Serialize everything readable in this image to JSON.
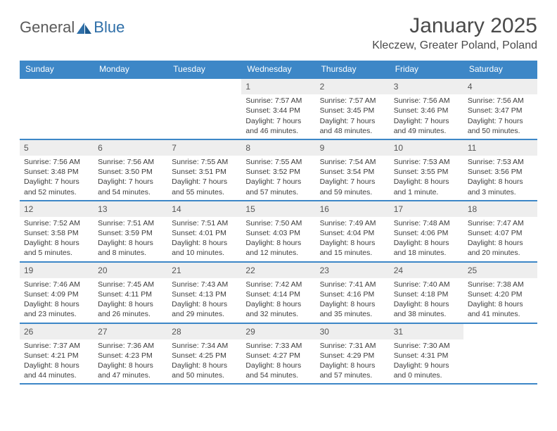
{
  "brand": {
    "part1": "General",
    "part2": "Blue"
  },
  "title": "January 2025",
  "location": "Kleczew, Greater Poland, Poland",
  "colors": {
    "header_bg": "#3d87c7",
    "header_text": "#ffffff",
    "daynum_bg": "#eeeeee",
    "border": "#3d87c7",
    "text": "#3c3c3c",
    "logo_gray": "#5a5a5a",
    "logo_blue": "#2f6fa8"
  },
  "weekdays": [
    "Sunday",
    "Monday",
    "Tuesday",
    "Wednesday",
    "Thursday",
    "Friday",
    "Saturday"
  ],
  "weeks": [
    [
      {
        "num": "",
        "lines": []
      },
      {
        "num": "",
        "lines": []
      },
      {
        "num": "",
        "lines": []
      },
      {
        "num": "1",
        "lines": [
          "Sunrise: 7:57 AM",
          "Sunset: 3:44 PM",
          "Daylight: 7 hours",
          "and 46 minutes."
        ]
      },
      {
        "num": "2",
        "lines": [
          "Sunrise: 7:57 AM",
          "Sunset: 3:45 PM",
          "Daylight: 7 hours",
          "and 48 minutes."
        ]
      },
      {
        "num": "3",
        "lines": [
          "Sunrise: 7:56 AM",
          "Sunset: 3:46 PM",
          "Daylight: 7 hours",
          "and 49 minutes."
        ]
      },
      {
        "num": "4",
        "lines": [
          "Sunrise: 7:56 AM",
          "Sunset: 3:47 PM",
          "Daylight: 7 hours",
          "and 50 minutes."
        ]
      }
    ],
    [
      {
        "num": "5",
        "lines": [
          "Sunrise: 7:56 AM",
          "Sunset: 3:48 PM",
          "Daylight: 7 hours",
          "and 52 minutes."
        ]
      },
      {
        "num": "6",
        "lines": [
          "Sunrise: 7:56 AM",
          "Sunset: 3:50 PM",
          "Daylight: 7 hours",
          "and 54 minutes."
        ]
      },
      {
        "num": "7",
        "lines": [
          "Sunrise: 7:55 AM",
          "Sunset: 3:51 PM",
          "Daylight: 7 hours",
          "and 55 minutes."
        ]
      },
      {
        "num": "8",
        "lines": [
          "Sunrise: 7:55 AM",
          "Sunset: 3:52 PM",
          "Daylight: 7 hours",
          "and 57 minutes."
        ]
      },
      {
        "num": "9",
        "lines": [
          "Sunrise: 7:54 AM",
          "Sunset: 3:54 PM",
          "Daylight: 7 hours",
          "and 59 minutes."
        ]
      },
      {
        "num": "10",
        "lines": [
          "Sunrise: 7:53 AM",
          "Sunset: 3:55 PM",
          "Daylight: 8 hours",
          "and 1 minute."
        ]
      },
      {
        "num": "11",
        "lines": [
          "Sunrise: 7:53 AM",
          "Sunset: 3:56 PM",
          "Daylight: 8 hours",
          "and 3 minutes."
        ]
      }
    ],
    [
      {
        "num": "12",
        "lines": [
          "Sunrise: 7:52 AM",
          "Sunset: 3:58 PM",
          "Daylight: 8 hours",
          "and 5 minutes."
        ]
      },
      {
        "num": "13",
        "lines": [
          "Sunrise: 7:51 AM",
          "Sunset: 3:59 PM",
          "Daylight: 8 hours",
          "and 8 minutes."
        ]
      },
      {
        "num": "14",
        "lines": [
          "Sunrise: 7:51 AM",
          "Sunset: 4:01 PM",
          "Daylight: 8 hours",
          "and 10 minutes."
        ]
      },
      {
        "num": "15",
        "lines": [
          "Sunrise: 7:50 AM",
          "Sunset: 4:03 PM",
          "Daylight: 8 hours",
          "and 12 minutes."
        ]
      },
      {
        "num": "16",
        "lines": [
          "Sunrise: 7:49 AM",
          "Sunset: 4:04 PM",
          "Daylight: 8 hours",
          "and 15 minutes."
        ]
      },
      {
        "num": "17",
        "lines": [
          "Sunrise: 7:48 AM",
          "Sunset: 4:06 PM",
          "Daylight: 8 hours",
          "and 18 minutes."
        ]
      },
      {
        "num": "18",
        "lines": [
          "Sunrise: 7:47 AM",
          "Sunset: 4:07 PM",
          "Daylight: 8 hours",
          "and 20 minutes."
        ]
      }
    ],
    [
      {
        "num": "19",
        "lines": [
          "Sunrise: 7:46 AM",
          "Sunset: 4:09 PM",
          "Daylight: 8 hours",
          "and 23 minutes."
        ]
      },
      {
        "num": "20",
        "lines": [
          "Sunrise: 7:45 AM",
          "Sunset: 4:11 PM",
          "Daylight: 8 hours",
          "and 26 minutes."
        ]
      },
      {
        "num": "21",
        "lines": [
          "Sunrise: 7:43 AM",
          "Sunset: 4:13 PM",
          "Daylight: 8 hours",
          "and 29 minutes."
        ]
      },
      {
        "num": "22",
        "lines": [
          "Sunrise: 7:42 AM",
          "Sunset: 4:14 PM",
          "Daylight: 8 hours",
          "and 32 minutes."
        ]
      },
      {
        "num": "23",
        "lines": [
          "Sunrise: 7:41 AM",
          "Sunset: 4:16 PM",
          "Daylight: 8 hours",
          "and 35 minutes."
        ]
      },
      {
        "num": "24",
        "lines": [
          "Sunrise: 7:40 AM",
          "Sunset: 4:18 PM",
          "Daylight: 8 hours",
          "and 38 minutes."
        ]
      },
      {
        "num": "25",
        "lines": [
          "Sunrise: 7:38 AM",
          "Sunset: 4:20 PM",
          "Daylight: 8 hours",
          "and 41 minutes."
        ]
      }
    ],
    [
      {
        "num": "26",
        "lines": [
          "Sunrise: 7:37 AM",
          "Sunset: 4:21 PM",
          "Daylight: 8 hours",
          "and 44 minutes."
        ]
      },
      {
        "num": "27",
        "lines": [
          "Sunrise: 7:36 AM",
          "Sunset: 4:23 PM",
          "Daylight: 8 hours",
          "and 47 minutes."
        ]
      },
      {
        "num": "28",
        "lines": [
          "Sunrise: 7:34 AM",
          "Sunset: 4:25 PM",
          "Daylight: 8 hours",
          "and 50 minutes."
        ]
      },
      {
        "num": "29",
        "lines": [
          "Sunrise: 7:33 AM",
          "Sunset: 4:27 PM",
          "Daylight: 8 hours",
          "and 54 minutes."
        ]
      },
      {
        "num": "30",
        "lines": [
          "Sunrise: 7:31 AM",
          "Sunset: 4:29 PM",
          "Daylight: 8 hours",
          "and 57 minutes."
        ]
      },
      {
        "num": "31",
        "lines": [
          "Sunrise: 7:30 AM",
          "Sunset: 4:31 PM",
          "Daylight: 9 hours",
          "and 0 minutes."
        ]
      },
      {
        "num": "",
        "lines": []
      }
    ]
  ]
}
